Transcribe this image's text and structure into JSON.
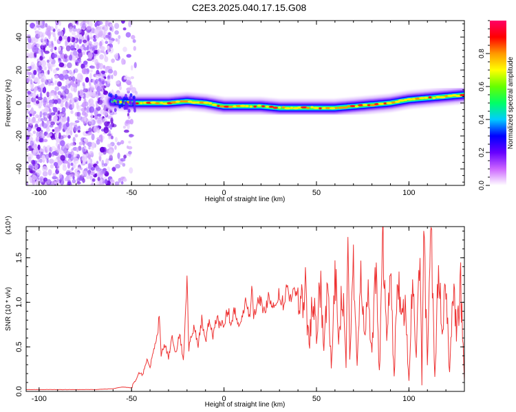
{
  "page_title": "C2E3.2025.040.17.15.G08",
  "chart_data": [
    {
      "type": "heatmap",
      "xlabel": "Height of straight line (km)",
      "ylabel": "Frequency (Hz)",
      "xlim": [
        -107,
        130
      ],
      "ylim": [
        -50,
        50
      ],
      "x_ticks": [
        -100,
        -50,
        0,
        50,
        100
      ],
      "y_ticks": [
        -40,
        -20,
        0,
        20,
        40
      ],
      "x_tick_labels": [
        "-100",
        "-50",
        "0",
        "50",
        "100"
      ],
      "y_tick_labels": [
        "-40",
        "-20",
        "0",
        "20",
        "40"
      ],
      "noise_region_x": [
        -107,
        -47
      ],
      "ridge": {
        "x": [
          -60,
          -50,
          -40,
          -30,
          -20,
          -10,
          0,
          10,
          20,
          30,
          40,
          50,
          60,
          70,
          80,
          90,
          100,
          110,
          120,
          130
        ],
        "frequency": [
          1,
          0,
          0,
          0,
          1,
          0,
          -2,
          -2,
          -2,
          -3,
          -3,
          -3,
          -3,
          -2,
          -1,
          0,
          2,
          3,
          4,
          5
        ]
      },
      "colorbar": {
        "label": "Normalized spectral amplitude",
        "range": [
          0,
          1
        ],
        "ticks": [
          0.0,
          0.2,
          0.4,
          0.6,
          0.8
        ],
        "tick_labels": [
          "0.0",
          "0.2",
          "0.4",
          "0.6",
          "0.8"
        ],
        "colors": [
          "#ffffff",
          "#cc66ff",
          "#6600ff",
          "#0000ff",
          "#00ccff",
          "#00ff66",
          "#66ff00",
          "#ffff00",
          "#ff9900",
          "#ff0000",
          "#ff0066"
        ]
      }
    },
    {
      "type": "line",
      "xlabel": "Height of straight line (km)",
      "ylabel": "SNR (10 * v/v)",
      "scale_note": "(x10⁴)",
      "xlim": [
        -107,
        130
      ],
      "ylim": [
        0,
        1.85
      ],
      "x_ticks": [
        -100,
        -50,
        0,
        50,
        100
      ],
      "y_ticks": [
        0.0,
        0.5,
        1.0,
        1.5
      ],
      "x_tick_labels": [
        "-100",
        "-50",
        "0",
        "50",
        "100"
      ],
      "y_tick_labels": [
        "0.0",
        "0.5",
        "1.0",
        "1.5"
      ],
      "color": "#ee3333",
      "x": [
        -107,
        -100,
        -90,
        -80,
        -70,
        -60,
        -55,
        -50,
        -48,
        -46,
        -44,
        -42,
        -40,
        -38,
        -36,
        -35,
        -34,
        -32,
        -30,
        -28,
        -26,
        -24,
        -22,
        -20,
        -19,
        -18,
        -16,
        -14,
        -12,
        -10,
        -8,
        -6,
        -4,
        -2,
        0,
        2,
        4,
        6,
        8,
        10,
        12,
        14,
        15,
        16,
        18,
        20,
        22,
        24,
        26,
        28,
        30,
        32,
        34,
        36,
        38,
        40,
        42,
        44,
        46,
        48,
        50,
        52,
        54,
        56,
        58,
        60,
        62,
        64,
        66,
        67,
        68,
        70,
        72,
        74,
        76,
        78,
        80,
        82,
        84,
        86,
        88,
        90,
        92,
        94,
        96,
        98,
        100,
        102,
        104,
        106,
        107,
        108,
        110,
        112,
        114,
        116,
        118,
        120,
        122,
        124,
        126,
        128,
        130
      ],
      "y": [
        0.02,
        0.02,
        0.02,
        0.02,
        0.02,
        0.03,
        0.05,
        0.04,
        0.12,
        0.22,
        0.18,
        0.35,
        0.28,
        0.45,
        0.62,
        0.89,
        0.41,
        0.52,
        0.38,
        0.61,
        0.44,
        0.66,
        0.35,
        1.27,
        0.48,
        0.58,
        0.72,
        0.51,
        0.82,
        0.55,
        0.79,
        0.62,
        0.85,
        0.71,
        0.78,
        0.93,
        0.74,
        0.96,
        0.68,
        0.88,
        1.01,
        0.79,
        1.15,
        0.86,
        0.98,
        1.04,
        0.87,
        1.09,
        0.95,
        1.02,
        1.1,
        0.99,
        1.15,
        1.06,
        1.12,
        1.17,
        1.03,
        1.14,
        0.52,
        1.08,
        0.68,
        1.25,
        0.45,
        1.3,
        0.28,
        1.38,
        0.55,
        1.2,
        0.35,
        1.72,
        0.32,
        1.45,
        0.25,
        1.55,
        0.55,
        1.16,
        0.38,
        1.42,
        0.22,
        1.62,
        0.48,
        1.32,
        0.15,
        1.5,
        0.7,
        1.05,
        0.08,
        1.28,
        0.35,
        1.55,
        0.1,
        1.86,
        0.3,
        1.74,
        0.12,
        1.4,
        0.55,
        1.25,
        0.2,
        1.12,
        0.65,
        1.18,
        0.1
      ]
    }
  ]
}
